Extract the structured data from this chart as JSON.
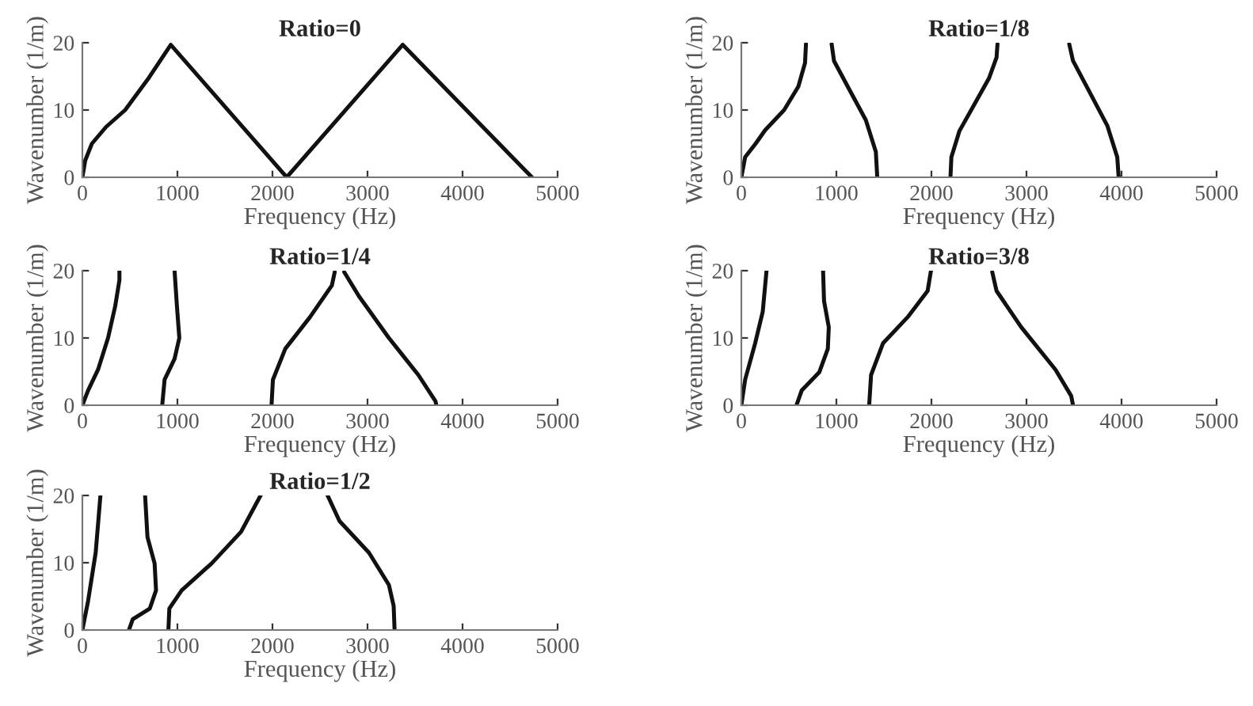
{
  "chart_data": [
    {
      "type": "line",
      "title": "Ratio=0",
      "xlabel": "Frequency (Hz)",
      "ylabel": "Wavenumber (1/m)",
      "xlim": [
        0,
        5000
      ],
      "xticks": [
        0,
        1000,
        2000,
        3000,
        4000,
        5000
      ],
      "ylim": [
        0,
        20
      ],
      "yticks": [
        0,
        10,
        20
      ],
      "grid": false,
      "legend": false,
      "series": [
        {
          "color": "#111111",
          "x": [
            0,
            30,
            100,
            250,
            450,
            700,
            930,
            2150,
            3370,
            4730
          ],
          "values": [
            0,
            2.5,
            5,
            7.5,
            10,
            14.8,
            19.7,
            0,
            19.7,
            0
          ]
        }
      ]
    },
    {
      "type": "line",
      "title": "Ratio=1/8",
      "xlabel": "Frequency (Hz)",
      "ylabel": "Wavenumber (1/m)",
      "xlim": [
        0,
        5000
      ],
      "xticks": [
        0,
        1000,
        2000,
        3000,
        4000,
        5000
      ],
      "ylim": [
        0,
        20
      ],
      "yticks": [
        0,
        10,
        20
      ],
      "grid": false,
      "legend": false,
      "series": [
        {
          "color": "#111111",
          "x": [
            0,
            40,
            150,
            250,
            450,
            600,
            670,
            680
          ],
          "values": [
            0,
            3,
            5,
            7,
            10,
            13.5,
            17,
            19.8
          ]
        },
        {
          "color": "#111111",
          "x": [
            950,
            975,
            1130,
            1310,
            1415,
            1430
          ],
          "values": [
            19.8,
            17.3,
            13.2,
            8.5,
            3.8,
            0
          ]
        },
        {
          "color": "#111111",
          "x": [
            2200,
            2210,
            2295,
            2450,
            2605,
            2685,
            2695
          ],
          "values": [
            0,
            3,
            6.9,
            10.8,
            14.7,
            17.8,
            19.8
          ]
        },
        {
          "color": "#111111",
          "x": [
            3450,
            3490,
            3640,
            3850,
            3955,
            3970
          ],
          "values": [
            19.8,
            17.3,
            13.3,
            7.7,
            3,
            0
          ]
        }
      ]
    },
    {
      "type": "line",
      "title": "Ratio=1/4",
      "xlabel": "Frequency (Hz)",
      "ylabel": "Wavenumber (1/m)",
      "xlim": [
        0,
        5000
      ],
      "xticks": [
        0,
        1000,
        2000,
        3000,
        4000,
        5000
      ],
      "ylim": [
        0,
        20
      ],
      "yticks": [
        0,
        10,
        20
      ],
      "grid": false,
      "legend": false,
      "series": [
        {
          "color": "#111111",
          "x": [
            0,
            60,
            165,
            270,
            345,
            390,
            390
          ],
          "values": [
            0,
            2.2,
            5.3,
            10,
            14.7,
            18.6,
            20
          ]
        },
        {
          "color": "#111111",
          "x": [
            840,
            865,
            970,
            1020,
            995,
            970
          ],
          "values": [
            0,
            3.8,
            6.9,
            10,
            14.7,
            20
          ]
        },
        {
          "color": "#111111",
          "x": [
            1990,
            2005,
            2135,
            2395,
            2625,
            2655
          ],
          "values": [
            0,
            3.8,
            8.4,
            13.1,
            17.8,
            19.8
          ]
        },
        {
          "color": "#111111",
          "x": [
            2755,
            2910,
            3225,
            3535,
            3715,
            3725
          ],
          "values": [
            19.8,
            16.2,
            10,
            4.5,
            0.6,
            0
          ]
        }
      ]
    },
    {
      "type": "line",
      "title": "Ratio=3/8",
      "xlabel": "Frequency (Hz)",
      "ylabel": "Wavenumber (1/m)",
      "xlim": [
        0,
        5000
      ],
      "xticks": [
        0,
        1000,
        2000,
        3000,
        4000,
        5000
      ],
      "ylim": [
        0,
        20
      ],
      "yticks": [
        0,
        10,
        20
      ],
      "grid": false,
      "legend": false,
      "series": [
        {
          "color": "#111111",
          "x": [
            0,
            40,
            145,
            225,
            265
          ],
          "values": [
            0,
            3.8,
            9.2,
            13.9,
            20
          ]
        },
        {
          "color": "#111111",
          "x": [
            580,
            635,
            820,
            910,
            920,
            870,
            860
          ],
          "values": [
            0,
            2.2,
            4.9,
            8.4,
            11.6,
            15.5,
            20
          ]
        },
        {
          "color": "#111111",
          "x": [
            1345,
            1365,
            1490,
            1750,
            1960,
            1995
          ],
          "values": [
            0,
            4.5,
            9.2,
            13.1,
            17,
            20
          ]
        },
        {
          "color": "#111111",
          "x": [
            2640,
            2685,
            2945,
            3305,
            3470,
            3490
          ],
          "values": [
            19.8,
            17,
            11.6,
            5.3,
            1.4,
            0
          ]
        }
      ]
    },
    {
      "type": "line",
      "title": "Ratio=1/2",
      "xlabel": "Frequency (Hz)",
      "ylabel": "Wavenumber (1/m)",
      "xlim": [
        0,
        5000
      ],
      "xticks": [
        0,
        1000,
        2000,
        3000,
        4000,
        5000
      ],
      "ylim": [
        0,
        20
      ],
      "yticks": [
        0,
        10,
        20
      ],
      "grid": false,
      "legend": false,
      "series": [
        {
          "color": "#111111",
          "x": [
            0,
            60,
            140,
            190
          ],
          "values": [
            0,
            4.3,
            11.5,
            20
          ]
        },
        {
          "color": "#111111",
          "x": [
            490,
            530,
            710,
            775,
            760,
            685,
            660
          ],
          "values": [
            0,
            1.6,
            3.2,
            5.9,
            9.9,
            13.8,
            20
          ]
        },
        {
          "color": "#111111",
          "x": [
            905,
            915,
            1045,
            1360,
            1670,
            1875
          ],
          "values": [
            0,
            3.2,
            5.9,
            9.9,
            14.6,
            20
          ]
        },
        {
          "color": "#111111",
          "x": [
            2580,
            2705,
            3015,
            3225,
            3275,
            3285
          ],
          "values": [
            20,
            16.2,
            11.5,
            6.7,
            3.6,
            0
          ]
        }
      ]
    }
  ]
}
